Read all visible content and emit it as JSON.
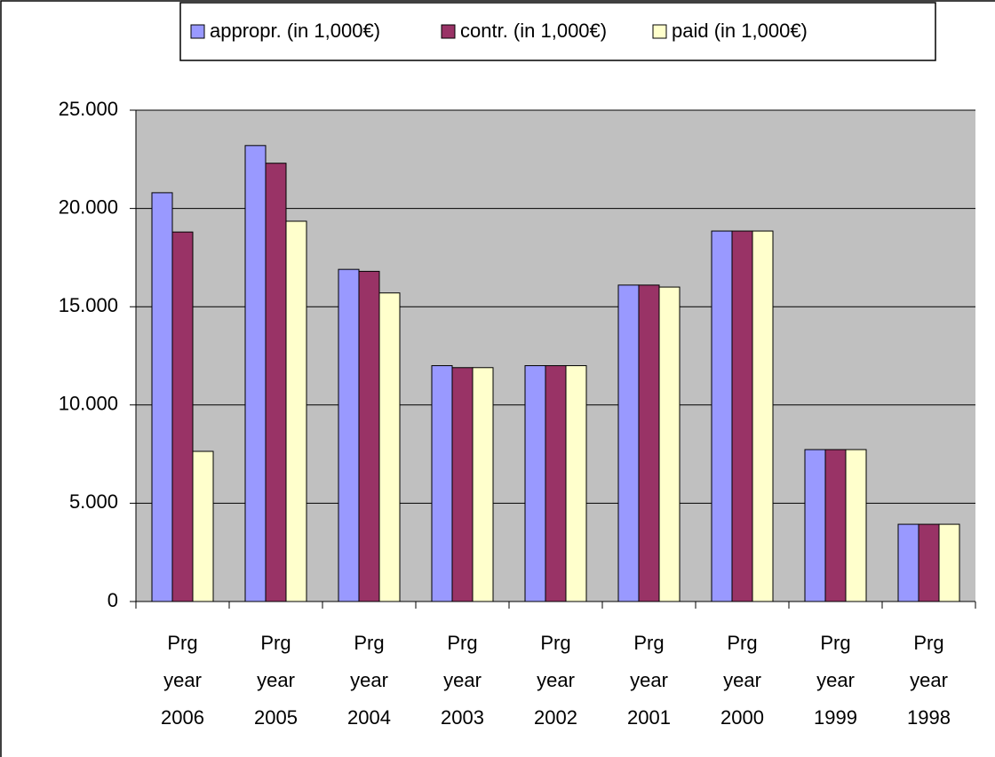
{
  "chart_data": {
    "type": "bar",
    "categories": [
      "Prg year 2006",
      "Prg year 2005",
      "Prg year 2004",
      "Prg year 2003",
      "Prg year 2002",
      "Prg year 2001",
      "Prg year 2000",
      "Prg year 1999",
      "Prg year 1998"
    ],
    "series": [
      {
        "name": "appropr. (in 1,000€)",
        "color": "#9999ff",
        "values": [
          20800,
          23200,
          16900,
          12000,
          12000,
          16100,
          18850,
          7730,
          3930
        ]
      },
      {
        "name": "contr. (in 1,000€)",
        "color": "#993366",
        "values": [
          18800,
          22300,
          16800,
          11900,
          12000,
          16100,
          18850,
          7730,
          3930
        ]
      },
      {
        "name": "paid (in 1,000€)",
        "color": "#ffffcc",
        "values": [
          7640,
          19350,
          15700,
          11900,
          12000,
          16000,
          18850,
          7730,
          3930
        ]
      }
    ],
    "ylim": [
      0,
      25000
    ],
    "yticks": [
      0,
      {
        "value": 5000,
        "label": "5.000"
      },
      {
        "value": 10000,
        "label": "10.000"
      },
      {
        "value": 15000,
        "label": "15.000"
      },
      {
        "value": 20000,
        "label": "20.000"
      },
      {
        "value": 25000,
        "label": "25.000"
      }
    ],
    "grid": true,
    "legend": "top"
  }
}
